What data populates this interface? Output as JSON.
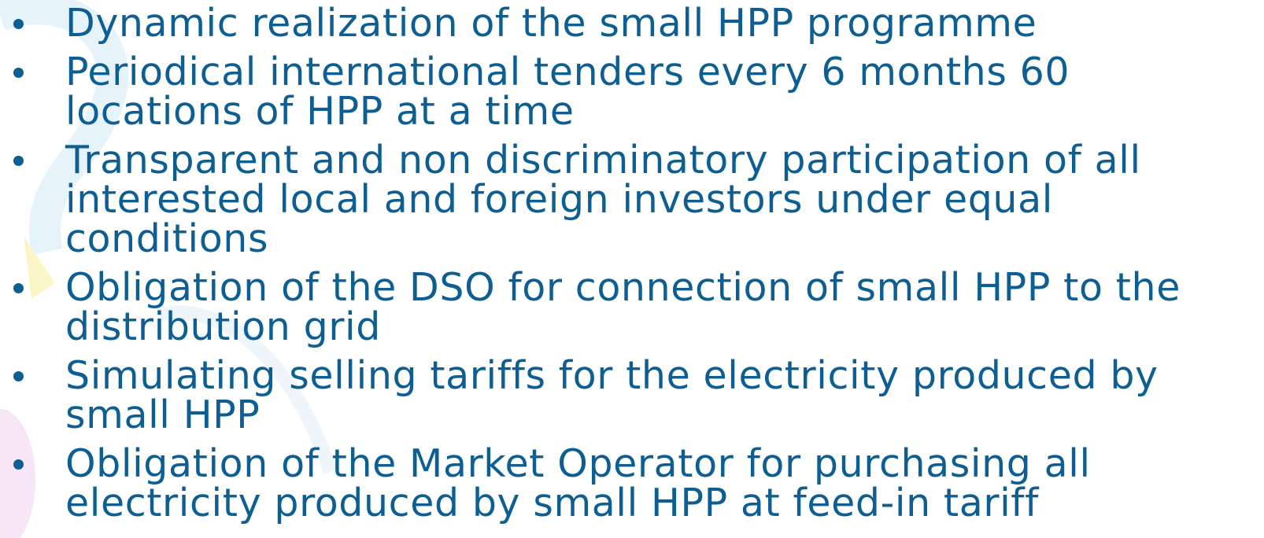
{
  "bullets": [
    {
      "lines": [
        "Dynamic realization of the small HPP programme"
      ]
    },
    {
      "lines": [
        "Periodical international tenders every 6 months 60",
        "locations of HPP at a time"
      ]
    },
    {
      "lines": [
        "Transparent and non discriminatory participation of all",
        "interested local and foreign investors under equal",
        "conditions"
      ]
    },
    {
      "lines": [
        "Obligation of the DSO for connection of small HPP to the",
        "distribution grid"
      ]
    },
    {
      "lines": [
        "Simulating selling tariffs for the electricity produced by",
        "small HPP"
      ]
    },
    {
      "lines": [
        "Obligation of the Market Operator for purchasing all",
        "electricity produced by small HPP at feed-in tariff"
      ]
    }
  ]
}
